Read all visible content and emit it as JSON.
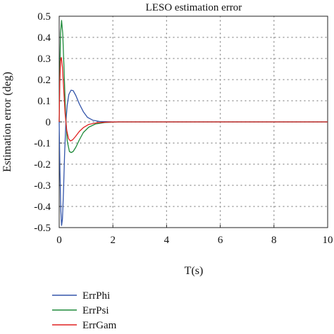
{
  "chart_data": {
    "type": "line",
    "title": "LESO estimation error",
    "xlabel": "T(s)",
    "ylabel": "Estimation error (deg)",
    "xlim": [
      0,
      10
    ],
    "ylim": [
      -0.5,
      0.5
    ],
    "xticks": [
      0,
      2,
      4,
      6,
      8,
      10
    ],
    "xtick_labels": [
      "0",
      "2",
      "4",
      "6",
      "8",
      "10"
    ],
    "yticks": [
      0.5,
      0.4,
      0.3,
      0.2,
      0.1,
      0,
      -0.1,
      -0.2,
      -0.3,
      -0.4,
      -0.5
    ],
    "ytick_labels": [
      "0.5",
      "0.4",
      "0.3",
      "0.2",
      "0.1",
      "0",
      "-0.1",
      "-0.2",
      "-0.3",
      "-0.4",
      "-0.5"
    ],
    "grid": true,
    "legend_position": "bottom-left, below plot",
    "series": [
      {
        "name": "ErrPhi",
        "color": "#3355aa",
        "points": [
          [
            0,
            0
          ],
          [
            0.03,
            -0.24
          ],
          [
            0.06,
            -0.42
          ],
          [
            0.09,
            -0.49
          ],
          [
            0.12,
            -0.46
          ],
          [
            0.16,
            -0.33
          ],
          [
            0.2,
            -0.16
          ],
          [
            0.25,
            0.0
          ],
          [
            0.3,
            0.08
          ],
          [
            0.36,
            0.13
          ],
          [
            0.44,
            0.15
          ],
          [
            0.52,
            0.148
          ],
          [
            0.62,
            0.125
          ],
          [
            0.75,
            0.085
          ],
          [
            0.9,
            0.048
          ],
          [
            1.05,
            0.022
          ],
          [
            1.25,
            0.008
          ],
          [
            1.5,
            0.002
          ],
          [
            2.0,
            0.0
          ],
          [
            3.0,
            0.0
          ],
          [
            10.0,
            0.0
          ]
        ]
      },
      {
        "name": "ErrPsi",
        "color": "#1f8a3a",
        "points": [
          [
            0,
            0
          ],
          [
            0.02,
            0.22
          ],
          [
            0.05,
            0.42
          ],
          [
            0.09,
            0.48
          ],
          [
            0.13,
            0.42
          ],
          [
            0.18,
            0.25
          ],
          [
            0.24,
            0.03
          ],
          [
            0.3,
            -0.09
          ],
          [
            0.38,
            -0.14
          ],
          [
            0.45,
            -0.145
          ],
          [
            0.52,
            -0.14
          ],
          [
            0.62,
            -0.12
          ],
          [
            0.75,
            -0.085
          ],
          [
            0.9,
            -0.05
          ],
          [
            1.1,
            -0.025
          ],
          [
            1.35,
            -0.01
          ],
          [
            1.7,
            -0.003
          ],
          [
            2.2,
            0.0
          ],
          [
            3.0,
            0.0
          ],
          [
            10.0,
            0.0
          ]
        ]
      },
      {
        "name": "ErrGam",
        "color": "#e02020",
        "points": [
          [
            0,
            0
          ],
          [
            0.02,
            0.18
          ],
          [
            0.05,
            0.29
          ],
          [
            0.08,
            0.305
          ],
          [
            0.12,
            0.26
          ],
          [
            0.17,
            0.15
          ],
          [
            0.22,
            0.04
          ],
          [
            0.28,
            -0.04
          ],
          [
            0.35,
            -0.08
          ],
          [
            0.42,
            -0.09
          ],
          [
            0.5,
            -0.085
          ],
          [
            0.6,
            -0.07
          ],
          [
            0.75,
            -0.045
          ],
          [
            0.9,
            -0.027
          ],
          [
            1.1,
            -0.012
          ],
          [
            1.4,
            -0.004
          ],
          [
            1.8,
            -0.001
          ],
          [
            2.2,
            0.0
          ],
          [
            10.0,
            0.0
          ]
        ]
      }
    ]
  }
}
